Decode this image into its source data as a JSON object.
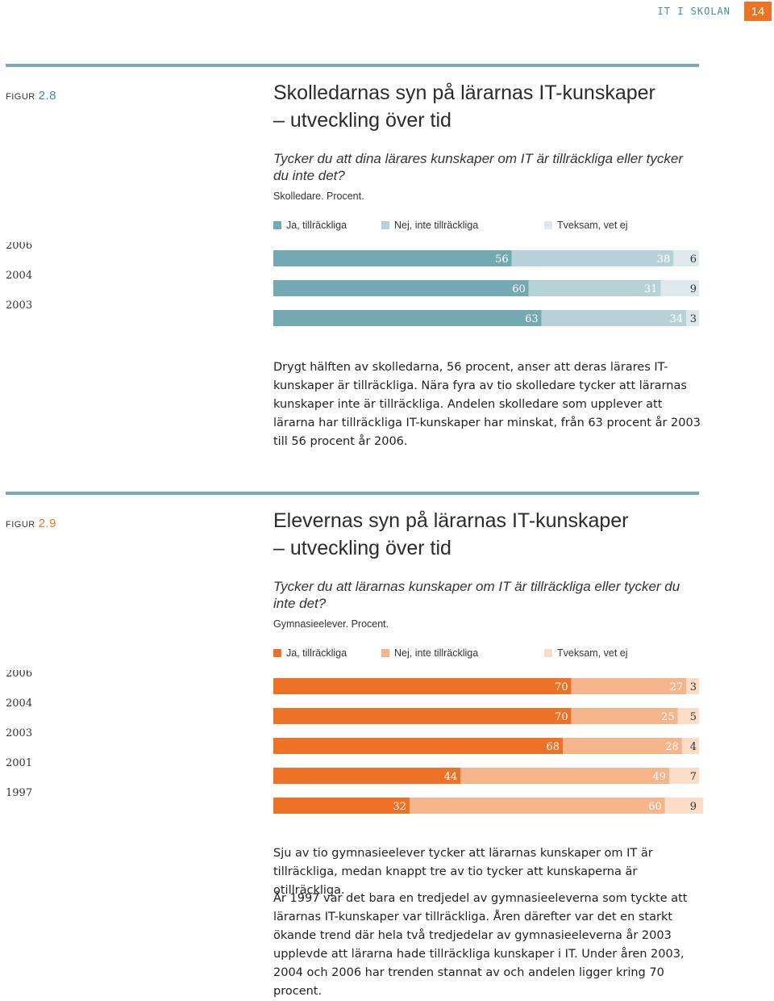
{
  "header": {
    "section": "IT I SKOLAN",
    "page": "14"
  },
  "figures": [
    {
      "label_word": "figur",
      "label_num": "2.8",
      "title_line1": "Skolledarnas syn på lärarnas IT-kunskaper",
      "title_line2": "– utveckling över tid",
      "question": "Tycker du att dina lärares kunskaper om IT är tillräckliga eller tycker du inte det?",
      "note": "Skolledare. Procent.",
      "legend": [
        "Ja, tillräckliga",
        "Nej, inte tillräckliga",
        "Tveksam, vet ej"
      ],
      "colors": [
        "#72a9b2",
        "#b6d2d7",
        "#dde9ec"
      ],
      "paragraphs": [
        "Drygt hälften av skolledarna, 56 procent, anser att deras lärares IT-kunskaper är tillräckliga. Nära fyra av tio skolledare tycker att lärarnas kunskaper inte är tillräckliga. Andelen skolledare som upplever att lärarna har tillräckliga IT-kunskaper har minskat, från 63 procent år 2003 till 56 procent år 2006."
      ]
    },
    {
      "label_word": "figur",
      "label_num": "2.9",
      "title_line1": "Elevernas syn på lärarnas IT-kunskaper",
      "title_line2": "– utveckling över tid",
      "question": "Tycker du att lärarnas kunskaper om IT är tillräckliga eller tycker du inte det?",
      "note": "Gymnasieelever. Procent.",
      "legend": [
        "Ja, tillräckliga",
        "Nej, inte tillräckliga",
        "Tveksam, vet ej"
      ],
      "colors": [
        "#ee7226",
        "#f6b48a",
        "#fbdcc7"
      ],
      "paragraphs": [
        "Sju av tio gymnasieelever tycker att lärarnas kunskaper om IT är tillräckliga, medan knappt tre av tio tycker att kunskaperna är otillräckliga.",
        "År 1997 var det bara en tredjedel av gymnasieeleverna som tyckte att lärarnas IT-kunskaper var tillräckliga. Åren därefter var det en starkt ökande trend där hela två tredjedelar av gymnasieeleverna år 2003 upplevde att lärarna hade tillräckliga kunskaper i IT. Under åren 2003, 2004 och 2006 har trenden stannat av och andelen ligger kring 70 procent."
      ]
    }
  ],
  "chart_data": [
    {
      "type": "bar",
      "stacked": true,
      "orientation": "horizontal",
      "title": "Skolledarnas syn på lärarnas IT-kunskaper – utveckling över tid",
      "categories": [
        "2006",
        "2004",
        "2003"
      ],
      "series": [
        {
          "name": "Ja, tillräckliga",
          "values": [
            56,
            60,
            63
          ]
        },
        {
          "name": "Nej, inte tillräckliga",
          "values": [
            38,
            31,
            34
          ]
        },
        {
          "name": "Tveksam, vet ej",
          "values": [
            6,
            9,
            3
          ]
        }
      ],
      "xlim": [
        0,
        100
      ],
      "legend": "top",
      "grid": false
    },
    {
      "type": "bar",
      "stacked": true,
      "orientation": "horizontal",
      "title": "Elevernas syn på lärarnas IT-kunskaper – utveckling över tid",
      "categories": [
        "2006",
        "2004",
        "2003",
        "2001",
        "1997"
      ],
      "series": [
        {
          "name": "Ja, tillräckliga",
          "values": [
            70,
            70,
            68,
            44,
            32
          ]
        },
        {
          "name": "Nej, inte tillräckliga",
          "values": [
            27,
            25,
            28,
            49,
            60
          ]
        },
        {
          "name": "Tveksam, vet ej",
          "values": [
            3,
            5,
            4,
            7,
            9
          ]
        }
      ],
      "xlim": [
        0,
        100
      ],
      "legend": "top",
      "grid": false
    }
  ]
}
